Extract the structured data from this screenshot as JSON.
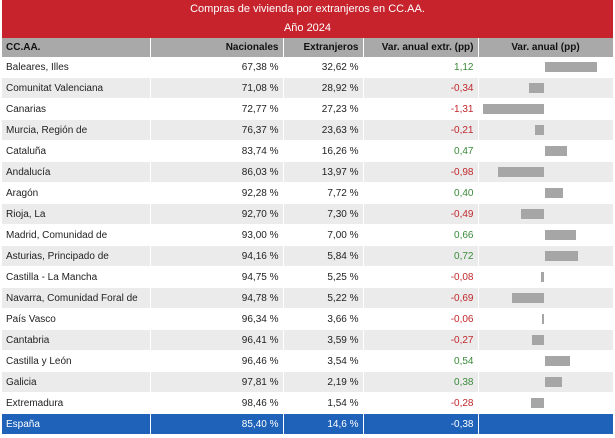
{
  "header": {
    "title": "Compras de vivienda por extranjeros en CC.AA.",
    "subtitle": "Año 2024"
  },
  "chart_data": {
    "type": "table",
    "title": "Compras de vivienda por extranjeros en CC.AA.",
    "subtitle": "Año 2024",
    "columns": [
      "CC.AA.",
      "Nacionales",
      "Extranjeros",
      "Var. anual extr. (pp)",
      "Var. anual (pp)"
    ],
    "bar_range": [
      -1.31,
      1.12
    ],
    "rows": [
      {
        "region": "Baleares, Illes",
        "nacionales": "67,38 %",
        "extranjeros": "32,62 %",
        "var_label": "1,12",
        "var": 1.12
      },
      {
        "region": "Comunitat Valenciana",
        "nacionales": "71,08 %",
        "extranjeros": "28,92 %",
        "var_label": "-0,34",
        "var": -0.34
      },
      {
        "region": "Canarias",
        "nacionales": "72,77 %",
        "extranjeros": "27,23 %",
        "var_label": "-1,31",
        "var": -1.31
      },
      {
        "region": "Murcia, Región de",
        "nacionales": "76,37 %",
        "extranjeros": "23,63 %",
        "var_label": "-0,21",
        "var": -0.21
      },
      {
        "region": "Cataluña",
        "nacionales": "83,74 %",
        "extranjeros": "16,26 %",
        "var_label": "0,47",
        "var": 0.47
      },
      {
        "region": "Andalucía",
        "nacionales": "86,03 %",
        "extranjeros": "13,97 %",
        "var_label": "-0,98",
        "var": -0.98
      },
      {
        "region": "Aragón",
        "nacionales": "92,28 %",
        "extranjeros": "7,72 %",
        "var_label": "0,40",
        "var": 0.4
      },
      {
        "region": "Rioja, La",
        "nacionales": "92,70 %",
        "extranjeros": "7,30 %",
        "var_label": "-0,49",
        "var": -0.49
      },
      {
        "region": "Madrid, Comunidad de",
        "nacionales": "93,00 %",
        "extranjeros": "7,00 %",
        "var_label": "0,66",
        "var": 0.66
      },
      {
        "region": "Asturias, Principado de",
        "nacionales": "94,16 %",
        "extranjeros": "5,84 %",
        "var_label": "0,72",
        "var": 0.72
      },
      {
        "region": "Castilla - La Mancha",
        "nacionales": "94,75 %",
        "extranjeros": "5,25 %",
        "var_label": "-0,08",
        "var": -0.08
      },
      {
        "region": "Navarra, Comunidad Foral de",
        "nacionales": "94,78 %",
        "extranjeros": "5,22 %",
        "var_label": "-0,69",
        "var": -0.69
      },
      {
        "region": "País Vasco",
        "nacionales": "96,34 %",
        "extranjeros": "3,66 %",
        "var_label": "-0,06",
        "var": -0.06
      },
      {
        "region": "Cantabria",
        "nacionales": "96,41 %",
        "extranjeros": "3,59 %",
        "var_label": "-0,27",
        "var": -0.27
      },
      {
        "region": "Castilla y León",
        "nacionales": "96,46 %",
        "extranjeros": "3,54 %",
        "var_label": "0,54",
        "var": 0.54
      },
      {
        "region": "Galicia",
        "nacionales": "97,81 %",
        "extranjeros": "2,19 %",
        "var_label": "0,38",
        "var": 0.38
      },
      {
        "region": "Extremadura",
        "nacionales": "98,46 %",
        "extranjeros": "1,54 %",
        "var_label": "-0,28",
        "var": -0.28
      }
    ],
    "total": {
      "region": "España",
      "nacionales": "85,40 %",
      "extranjeros": "14,6 %",
      "var_label": "-0,38",
      "var": -0.38
    },
    "colors": {
      "header_bar": "#c6232d",
      "positive": "#3a8a3a",
      "negative": "#c0282d",
      "bar": "#a6a6a6",
      "total_row": "#1f62b9"
    }
  }
}
